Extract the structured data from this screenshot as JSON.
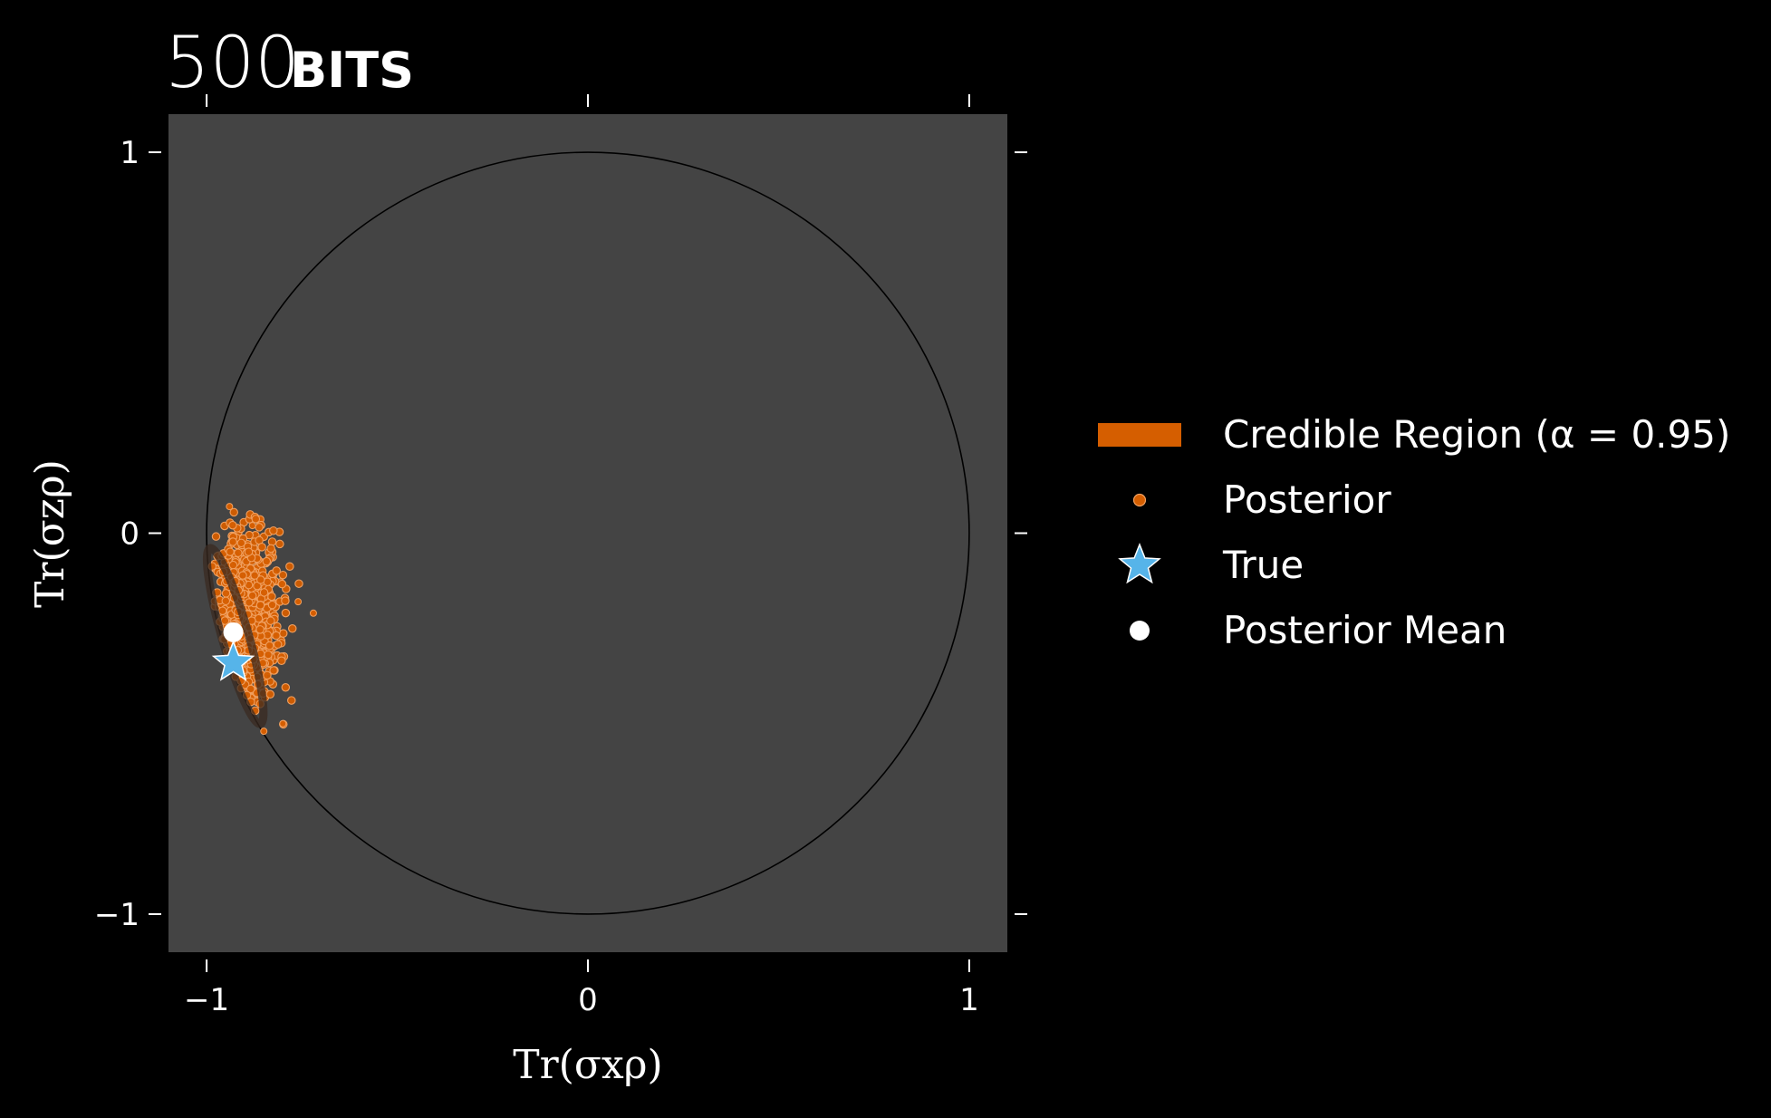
{
  "title": {
    "number": "500",
    "unit": "BITS"
  },
  "colors": {
    "background": "#000000",
    "plot_background": "#444444",
    "posterior": "#D55E00",
    "posterior_edge": "#F0A060",
    "true_marker": "#56B4E9",
    "mean_marker": "#ffffff",
    "circle": "#000000"
  },
  "chart_data": {
    "type": "scatter",
    "title": "500 BITS",
    "xlabel": "Tr(σxρ)",
    "ylabel": "Tr(σzρ)",
    "xlim": [
      -1.1,
      1.1
    ],
    "ylim": [
      -1.1,
      1.1
    ],
    "x_ticks": [
      -1,
      0,
      1
    ],
    "y_ticks": [
      -1,
      0,
      1
    ],
    "x_tick_labels": [
      "−1",
      "0",
      "1"
    ],
    "y_tick_labels": [
      "−1",
      "0",
      "1"
    ],
    "grid": false,
    "legend_position": "right",
    "unit_circle": {
      "center": [
        0,
        0
      ],
      "radius": 1
    },
    "posterior_cloud": {
      "center": [
        -0.9,
        -0.22
      ],
      "x_range": [
        -0.99,
        -0.72
      ],
      "y_range": [
        -0.52,
        0.07
      ]
    },
    "credible_region": {
      "center": [
        -0.925,
        -0.27
      ],
      "semi_axis_major": 0.24,
      "semi_axis_minor": 0.035,
      "tilt_deg": 16
    },
    "true_state": [
      -0.93,
      -0.34
    ],
    "posterior_mean": [
      -0.93,
      -0.26
    ],
    "legend": [
      {
        "label": "Credible Region (α = 0.95)",
        "marker": "band",
        "color": "#D55E00"
      },
      {
        "label": "Posterior",
        "marker": "dot",
        "color": "#D55E00"
      },
      {
        "label": "True",
        "marker": "star",
        "color": "#56B4E9"
      },
      {
        "label": "Posterior Mean",
        "marker": "circle",
        "color": "#ffffff"
      }
    ]
  }
}
